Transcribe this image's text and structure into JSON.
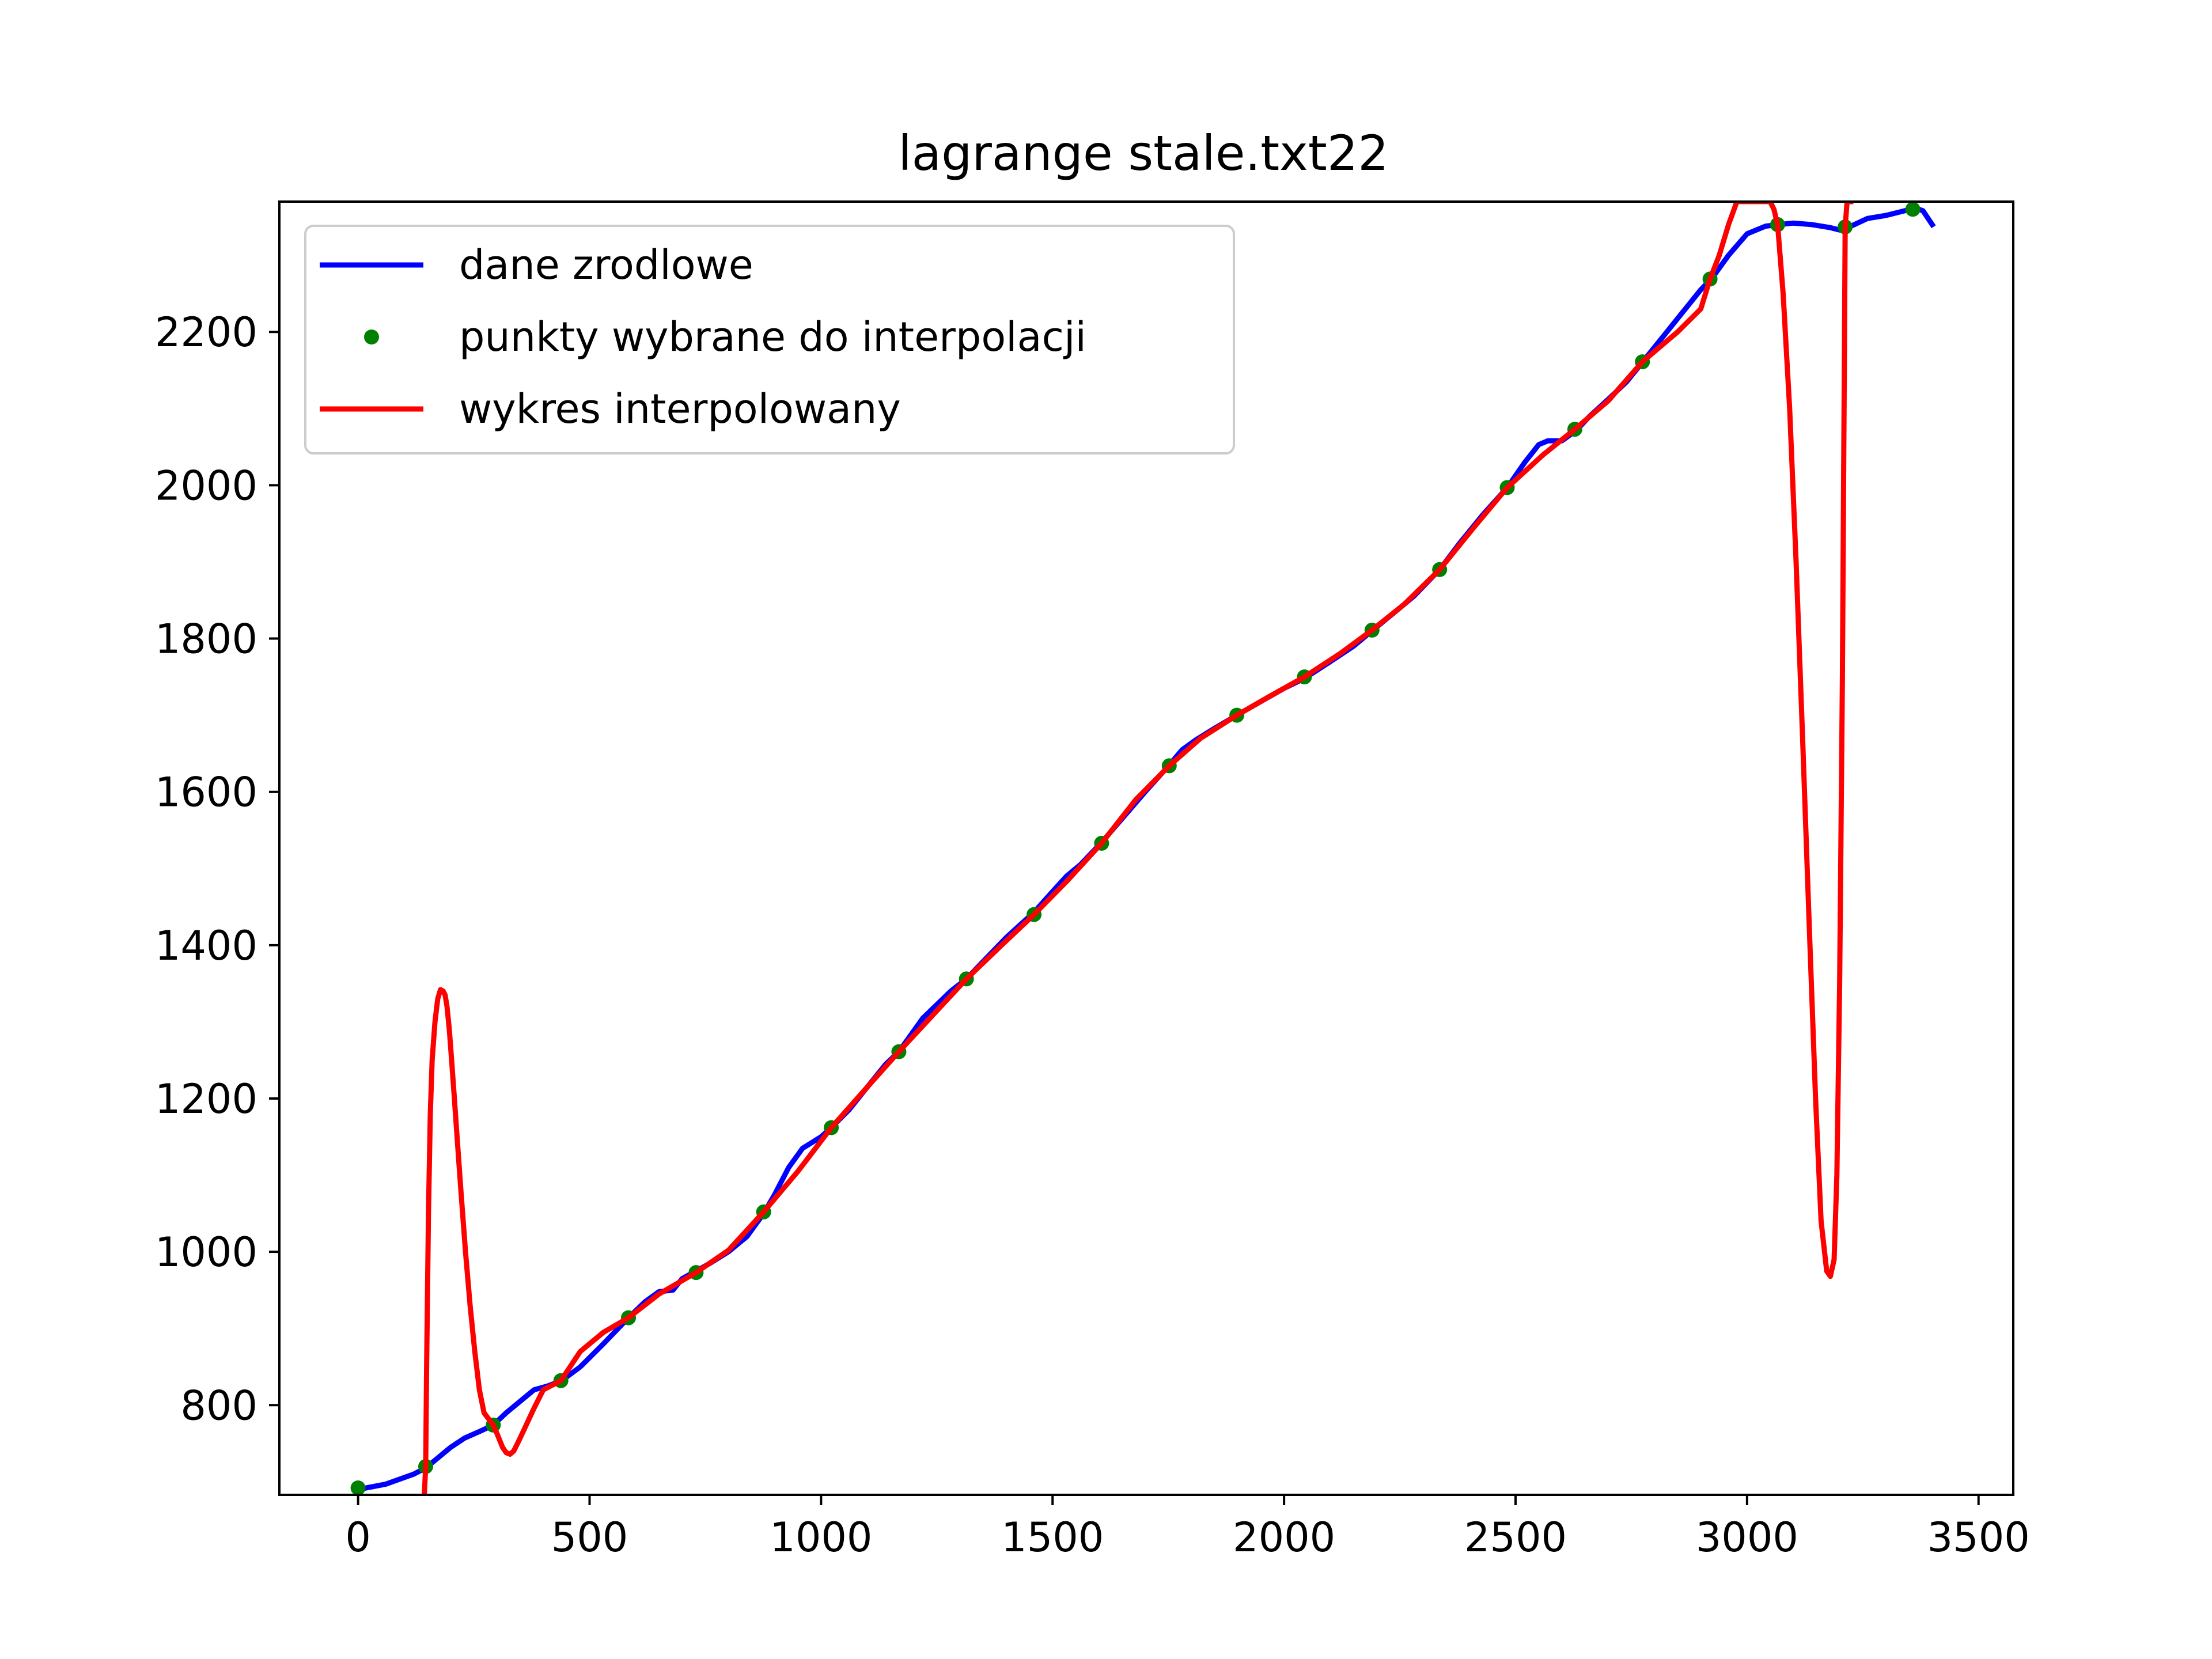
{
  "chart_data": {
    "type": "line",
    "title": "lagrange stale.txt22",
    "xlabel": "",
    "ylabel": "",
    "xlim": [
      -170,
      3575
    ],
    "ylim": [
      683,
      2370
    ],
    "x_ticks": [
      0,
      500,
      1000,
      1500,
      2000,
      2500,
      3000,
      3500
    ],
    "y_ticks": [
      800,
      1000,
      1200,
      1400,
      1600,
      1800,
      2000,
      2200
    ],
    "grid": false,
    "legend": {
      "placement": "upper-left",
      "entries": [
        {
          "label": "dane zrodlowe",
          "kind": "line",
          "color": "#0000ff"
        },
        {
          "label": "punkty wybrane do interpolacji",
          "kind": "marker",
          "color": "#008000"
        },
        {
          "label": "wykres interpolowany",
          "kind": "line",
          "color": "#ff0000"
        }
      ]
    },
    "series": [
      {
        "name": "dane zrodlowe",
        "kind": "line",
        "color": "#0000ff",
        "x": [
          0,
          60,
          120,
          146,
          200,
          230,
          260,
          292,
          320,
          360,
          380,
          410,
          440,
          480,
          530,
          584,
          620,
          650,
          680,
          700,
          730,
          760,
          800,
          840,
          876,
          900,
          930,
          960,
          1000,
          1022,
          1060,
          1100,
          1140,
          1168,
          1220,
          1280,
          1314,
          1360,
          1400,
          1460,
          1500,
          1530,
          1560,
          1606,
          1650,
          1700,
          1752,
          1780,
          1810,
          1850,
          1898,
          1950,
          2000,
          2044,
          2100,
          2150,
          2190,
          2230,
          2280,
          2336,
          2380,
          2430,
          2482,
          2520,
          2550,
          2570,
          2600,
          2632,
          2660,
          2700,
          2740,
          2776,
          2820,
          2860,
          2900,
          2924,
          2960,
          3000,
          3040,
          3068,
          3100,
          3140,
          3180,
          3200,
          3214,
          3260,
          3300,
          3340,
          3362,
          3380,
          3400
        ],
        "y": [
          690,
          697,
          710,
          718,
          745,
          757,
          765,
          774,
          790,
          810,
          820,
          825,
          832,
          850,
          880,
          914,
          935,
          948,
          950,
          965,
          975,
          985,
          1000,
          1020,
          1050,
          1075,
          1110,
          1135,
          1150,
          1162,
          1185,
          1215,
          1245,
          1261,
          1305,
          1340,
          1356,
          1385,
          1410,
          1443,
          1470,
          1490,
          1505,
          1534,
          1565,
          1600,
          1635,
          1655,
          1668,
          1683,
          1700,
          1718,
          1735,
          1748,
          1770,
          1790,
          1810,
          1830,
          1855,
          1890,
          1925,
          1962,
          1997,
          2030,
          2053,
          2058,
          2058,
          2072,
          2090,
          2112,
          2135,
          2162,
          2195,
          2225,
          2255,
          2270,
          2300,
          2328,
          2338,
          2340,
          2342,
          2340,
          2336,
          2333,
          2335,
          2348,
          2352,
          2358,
          2362,
          2358,
          2340
        ]
      },
      {
        "name": "punkty wybrane do interpolacji",
        "kind": "scatter",
        "color": "#008000",
        "x": [
          0,
          146,
          292,
          438,
          584,
          730,
          876,
          1022,
          1168,
          1314,
          1460,
          1606,
          1752,
          1898,
          2044,
          2190,
          2336,
          2482,
          2628,
          2774,
          2920,
          3066,
          3212,
          3358
        ],
        "y": [
          692,
          720,
          774,
          832,
          914,
          973,
          1052,
          1162,
          1261,
          1356,
          1440,
          1533,
          1634,
          1700,
          1750,
          1811,
          1890,
          1997,
          2073,
          2161,
          2269,
          2340,
          2337,
          2360
        ]
      },
      {
        "name": "wykres interpolowany",
        "kind": "line",
        "color": "#ff0000",
        "x": [
          143,
          146,
          148,
          152,
          156,
          160,
          166,
          172,
          178,
          184,
          188,
          192,
          197,
          202,
          208,
          215,
          222,
          232,
          242,
          252,
          262,
          272,
          282,
          292,
          302,
          312,
          320,
          328,
          336,
          346,
          360,
          380,
          400,
          438,
          480,
          530,
          584,
          650,
          730,
          800,
          876,
          950,
          1022,
          1100,
          1168,
          1240,
          1314,
          1390,
          1460,
          1530,
          1606,
          1680,
          1752,
          1820,
          1898,
          1970,
          2044,
          2120,
          2190,
          2260,
          2336,
          2410,
          2482,
          2560,
          2628,
          2700,
          2774,
          2850,
          2900,
          2920,
          2940,
          2960,
          2978,
          2988,
          3050,
          3058,
          3066,
          3078,
          3092,
          3106,
          3120,
          3134,
          3148,
          3160,
          3172,
          3180,
          3188,
          3194,
          3200,
          3206,
          3212,
          3216,
          3219,
          3222,
          3224
        ],
        "y": [
          683,
          720,
          850,
          1050,
          1180,
          1250,
          1300,
          1330,
          1342,
          1340,
          1335,
          1320,
          1290,
          1250,
          1200,
          1140,
          1080,
          1000,
          930,
          870,
          820,
          790,
          782,
          774,
          760,
          745,
          738,
          736,
          740,
          752,
          770,
          796,
          820,
          832,
          870,
          895,
          914,
          945,
          973,
          1002,
          1052,
          1105,
          1162,
          1215,
          1261,
          1308,
          1356,
          1400,
          1440,
          1483,
          1533,
          1590,
          1634,
          1670,
          1700,
          1725,
          1750,
          1780,
          1811,
          1845,
          1890,
          1945,
          1997,
          2040,
          2073,
          2110,
          2161,
          2200,
          2230,
          2269,
          2300,
          2340,
          2370,
          2370,
          2370,
          2360,
          2340,
          2250,
          2100,
          1900,
          1670,
          1430,
          1200,
          1040,
          975,
          968,
          990,
          1100,
          1350,
          1750,
          2337,
          2370,
          2370,
          2370,
          2370
        ]
      }
    ]
  }
}
